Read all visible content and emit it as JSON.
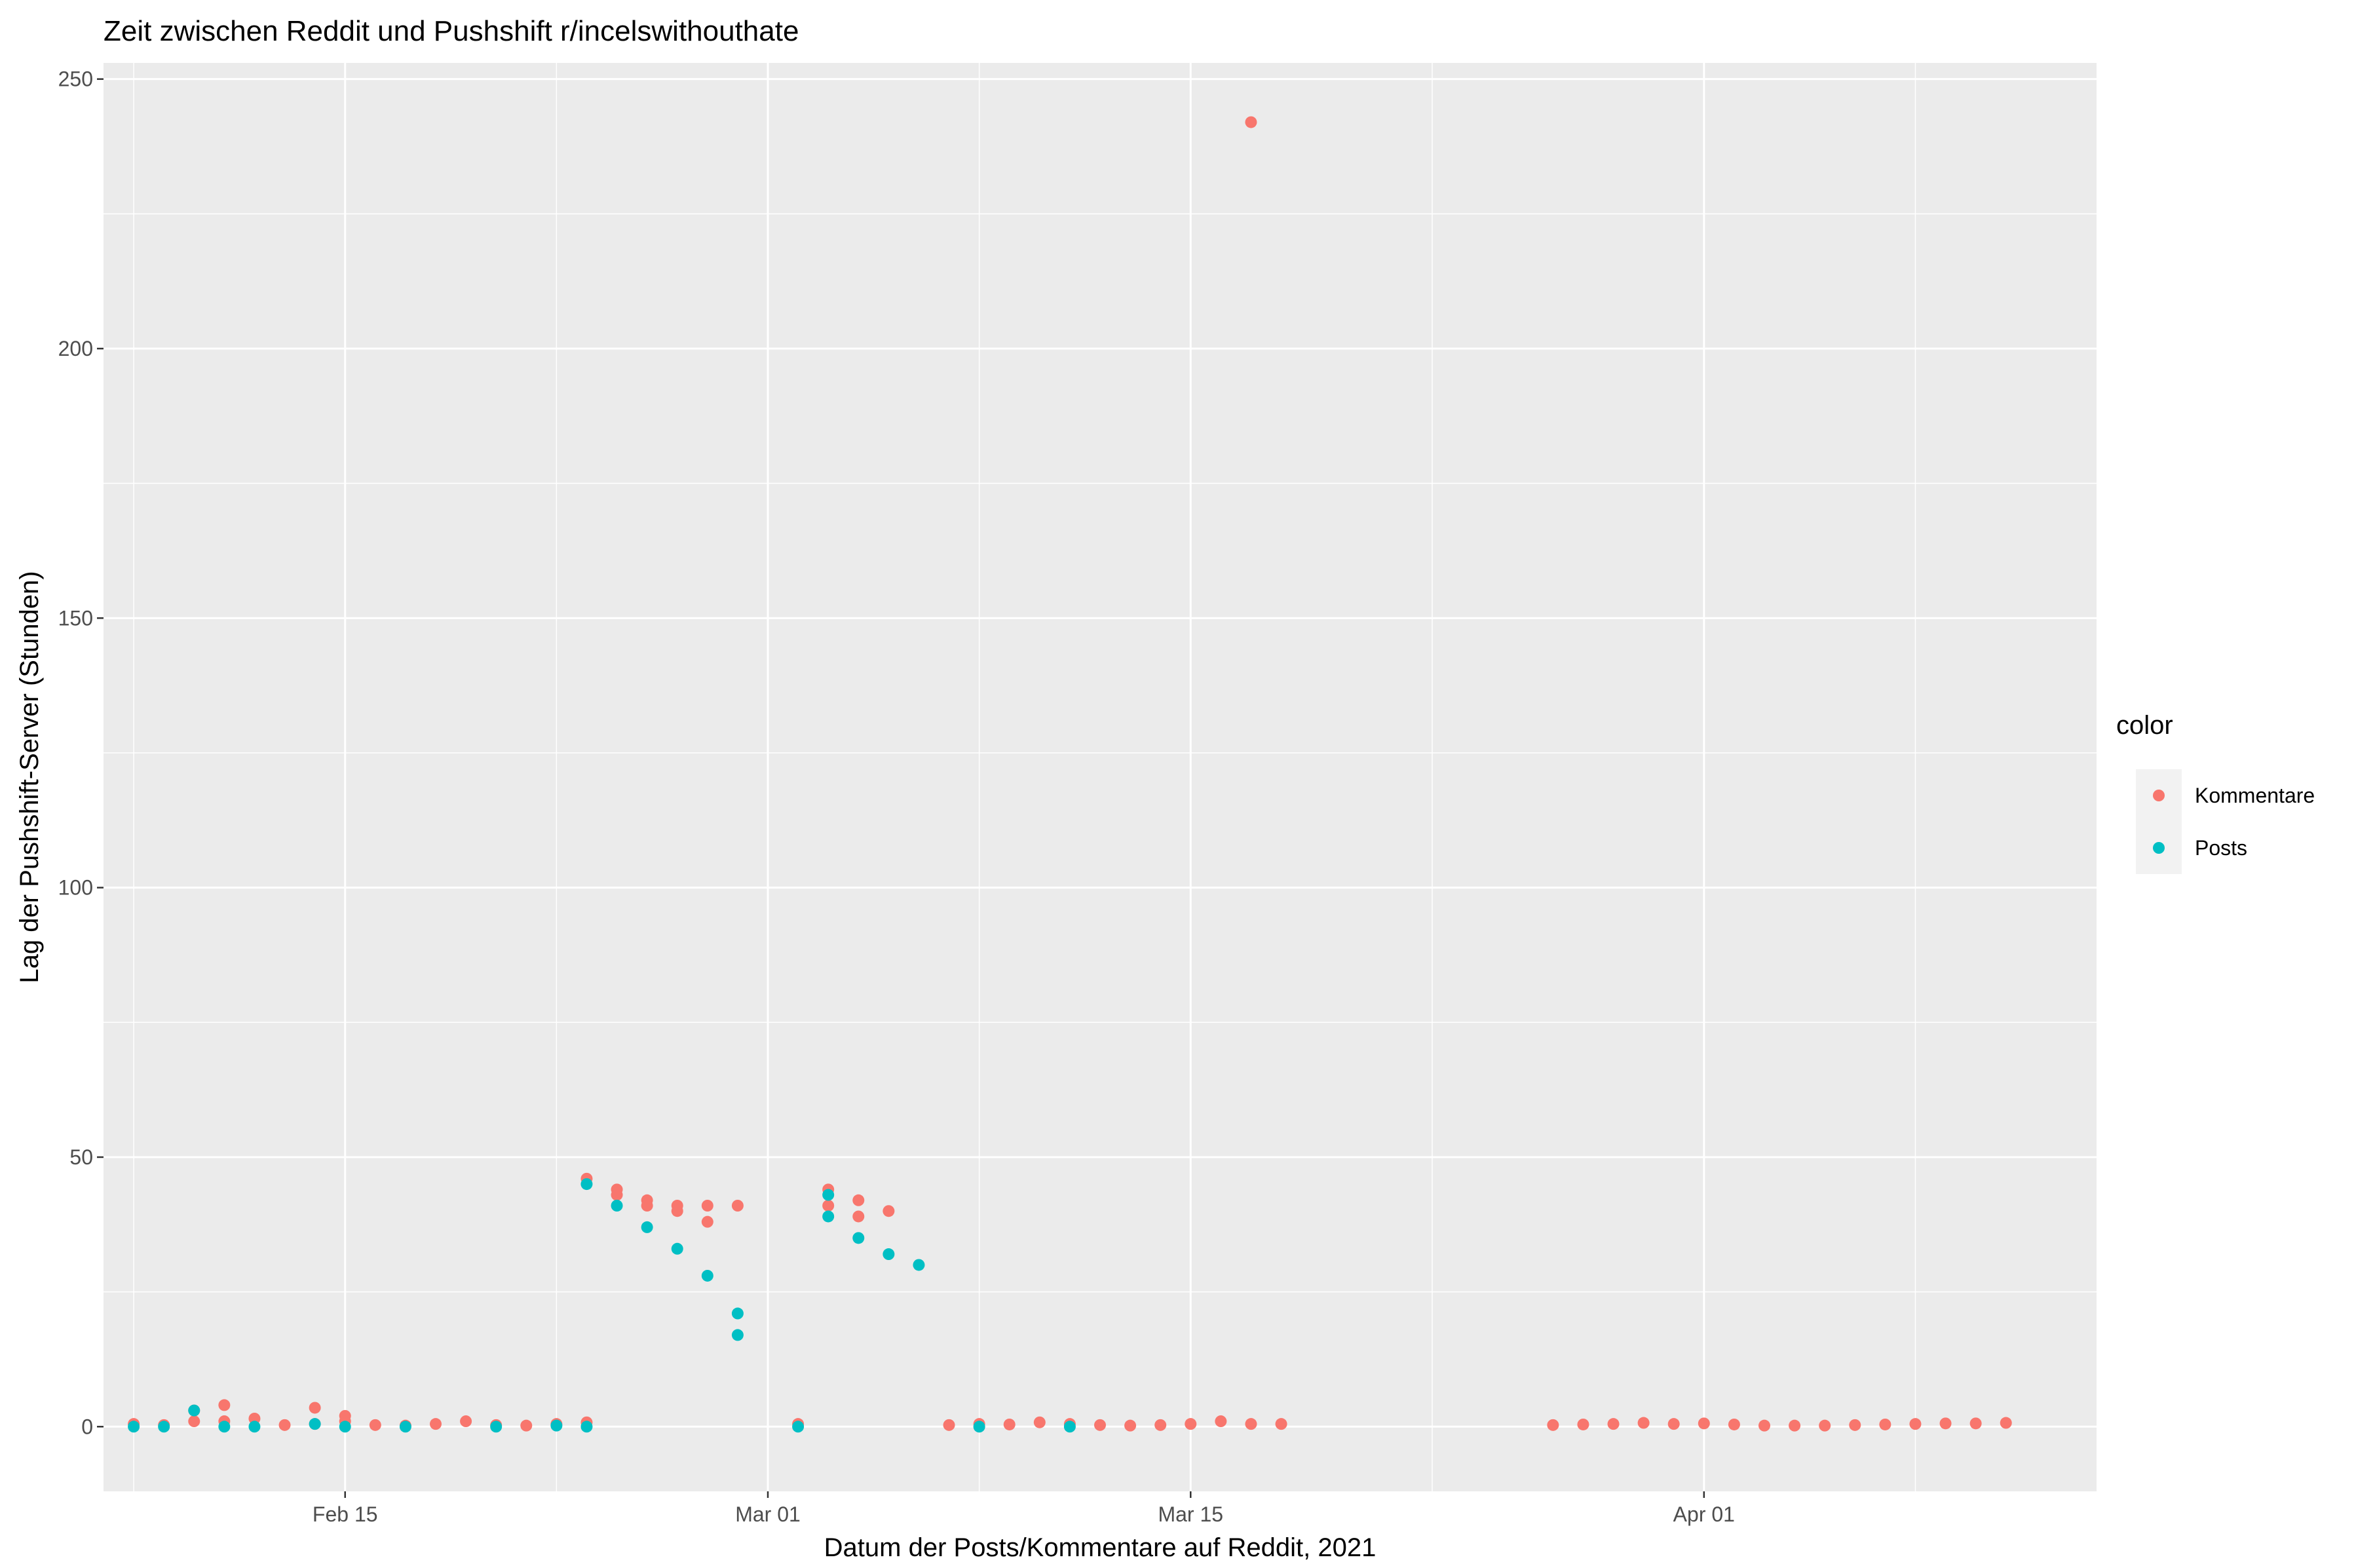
{
  "chart_data": {
    "type": "scatter",
    "title": "Zeit zwischen Reddit und Pushshift r/incelswithouthate",
    "xlabel": "Datum der Posts/Kommentare auf Reddit, 2021",
    "ylabel": "Lag der Pushshift-Server (Stunden)",
    "x_type": "date",
    "xlim": [
      "2021-02-07",
      "2021-04-14"
    ],
    "ylim": [
      -12,
      253
    ],
    "x_ticks": [
      {
        "date": "2021-02-15",
        "label": "Feb 15"
      },
      {
        "date": "2021-03-01",
        "label": "Mar 01"
      },
      {
        "date": "2021-03-15",
        "label": "Mar 15"
      },
      {
        "date": "2021-04-01",
        "label": "Apr 01"
      }
    ],
    "y_ticks": [
      0,
      50,
      100,
      150,
      200,
      250
    ],
    "grid": true,
    "legend": {
      "title": "color",
      "position": "right"
    },
    "series": [
      {
        "name": "Kommentare",
        "color": "#F8766D",
        "x": [
          "2021-02-08",
          "2021-02-09",
          "2021-02-10",
          "2021-02-10",
          "2021-02-11",
          "2021-02-11",
          "2021-02-12",
          "2021-02-13",
          "2021-02-14",
          "2021-02-14",
          "2021-02-15",
          "2021-02-15",
          "2021-02-16",
          "2021-02-17",
          "2021-02-18",
          "2021-02-19",
          "2021-02-20",
          "2021-02-21",
          "2021-02-22",
          "2021-02-23",
          "2021-02-23",
          "2021-02-24",
          "2021-02-24",
          "2021-02-25",
          "2021-02-25",
          "2021-02-26",
          "2021-02-26",
          "2021-02-27",
          "2021-02-27",
          "2021-02-28",
          "2021-03-02",
          "2021-03-03",
          "2021-03-03",
          "2021-03-04",
          "2021-03-04",
          "2021-03-05",
          "2021-03-07",
          "2021-03-08",
          "2021-03-09",
          "2021-03-10",
          "2021-03-11",
          "2021-03-12",
          "2021-03-13",
          "2021-03-14",
          "2021-03-15",
          "2021-03-16",
          "2021-03-17",
          "2021-03-17",
          "2021-03-18",
          "2021-03-27",
          "2021-03-28",
          "2021-03-29",
          "2021-03-30",
          "2021-03-31",
          "2021-04-01",
          "2021-04-02",
          "2021-04-03",
          "2021-04-04",
          "2021-04-05",
          "2021-04-06",
          "2021-04-07",
          "2021-04-08",
          "2021-04-09",
          "2021-04-10",
          "2021-04-11"
        ],
        "y": [
          0.5,
          0.3,
          3,
          1,
          4,
          1,
          1.5,
          0.3,
          0.5,
          3.5,
          1,
          2,
          0.3,
          0.2,
          0.5,
          1,
          0.3,
          0.2,
          0.5,
          0.8,
          46,
          43,
          44,
          41,
          42,
          40,
          41,
          38,
          41,
          41,
          0.5,
          44,
          41,
          42,
          39,
          40,
          0.3,
          0.5,
          0.4,
          0.8,
          0.5,
          0.3,
          0.2,
          0.3,
          0.5,
          1,
          0.5,
          242,
          0.5,
          0.3,
          0.4,
          0.5,
          0.7,
          0.5,
          0.6,
          0.4,
          0.2,
          0.2,
          0.2,
          0.3,
          0.4,
          0.5,
          0.6,
          0.6,
          0.7
        ]
      },
      {
        "name": "Posts",
        "color": "#00BFC4",
        "x": [
          "2021-02-08",
          "2021-02-09",
          "2021-02-10",
          "2021-02-11",
          "2021-02-12",
          "2021-02-14",
          "2021-02-15",
          "2021-02-17",
          "2021-02-20",
          "2021-02-22",
          "2021-02-23",
          "2021-02-23",
          "2021-02-24",
          "2021-02-25",
          "2021-02-26",
          "2021-02-27",
          "2021-02-28",
          "2021-02-28",
          "2021-03-02",
          "2021-03-03",
          "2021-03-03",
          "2021-03-04",
          "2021-03-05",
          "2021-03-06",
          "2021-03-08",
          "2021-03-11"
        ],
        "y": [
          0,
          0,
          3,
          0,
          0,
          0.5,
          0,
          0,
          0,
          0.2,
          0,
          45,
          41,
          37,
          33,
          28,
          21,
          17,
          0,
          43,
          39,
          35,
          32,
          30,
          0,
          0
        ]
      }
    ]
  }
}
